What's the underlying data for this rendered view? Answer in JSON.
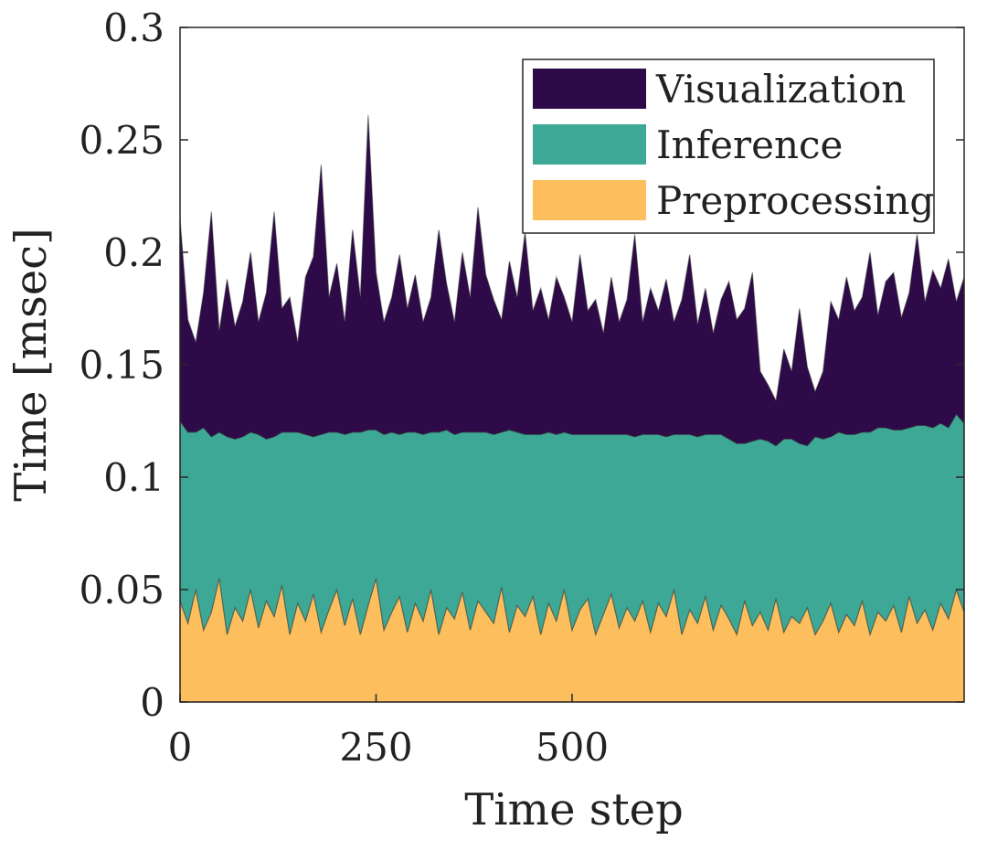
{
  "chart_data": {
    "type": "area",
    "stacked": true,
    "title": "",
    "xlabel": "Time step",
    "ylabel": "Time [msec]",
    "xlim": [
      0,
      1000
    ],
    "ylim": [
      0,
      0.3
    ],
    "xticks": [
      0,
      250,
      500
    ],
    "xtick_labels": [
      "0",
      "250",
      "500"
    ],
    "yticks": [
      0,
      0.05,
      0.1,
      0.15,
      0.2,
      0.25,
      0.3
    ],
    "ytick_labels": [
      "0",
      "0.05",
      "0.1",
      "0.15",
      "0.2",
      "0.25",
      "0.3"
    ],
    "grid": false,
    "legend_position": "top-right",
    "x_step": 10,
    "series": [
      {
        "name": "Preprocessing",
        "color": "#fdbf5e",
        "values": [
          0.045,
          0.035,
          0.05,
          0.032,
          0.04,
          0.055,
          0.03,
          0.042,
          0.036,
          0.05,
          0.033,
          0.045,
          0.038,
          0.052,
          0.03,
          0.044,
          0.036,
          0.048,
          0.031,
          0.041,
          0.05,
          0.034,
          0.046,
          0.03,
          0.043,
          0.055,
          0.032,
          0.04,
          0.047,
          0.031,
          0.044,
          0.036,
          0.05,
          0.03,
          0.042,
          0.037,
          0.049,
          0.032,
          0.045,
          0.04,
          0.035,
          0.051,
          0.031,
          0.043,
          0.038,
          0.047,
          0.03,
          0.044,
          0.036,
          0.05,
          0.032,
          0.041,
          0.046,
          0.03,
          0.039,
          0.048,
          0.033,
          0.042,
          0.036,
          0.045,
          0.031,
          0.044,
          0.038,
          0.05,
          0.03,
          0.041,
          0.035,
          0.047,
          0.032,
          0.043,
          0.037,
          0.03,
          0.045,
          0.034,
          0.04,
          0.032,
          0.046,
          0.031,
          0.038,
          0.035,
          0.042,
          0.03,
          0.036,
          0.044,
          0.031,
          0.039,
          0.034,
          0.045,
          0.03,
          0.04,
          0.036,
          0.043,
          0.031,
          0.047,
          0.035,
          0.041,
          0.032,
          0.044,
          0.037,
          0.05,
          0.04
        ]
      },
      {
        "name": "Inference",
        "color": "#3ea897",
        "values": [
          0.08,
          0.085,
          0.07,
          0.09,
          0.078,
          0.065,
          0.088,
          0.075,
          0.082,
          0.07,
          0.086,
          0.072,
          0.08,
          0.068,
          0.09,
          0.076,
          0.083,
          0.07,
          0.088,
          0.079,
          0.07,
          0.085,
          0.074,
          0.09,
          0.078,
          0.066,
          0.087,
          0.08,
          0.072,
          0.089,
          0.076,
          0.083,
          0.07,
          0.09,
          0.079,
          0.082,
          0.071,
          0.088,
          0.075,
          0.08,
          0.084,
          0.069,
          0.09,
          0.077,
          0.081,
          0.072,
          0.089,
          0.076,
          0.083,
          0.07,
          0.087,
          0.078,
          0.073,
          0.089,
          0.08,
          0.071,
          0.086,
          0.077,
          0.082,
          0.074,
          0.088,
          0.075,
          0.08,
          0.069,
          0.089,
          0.078,
          0.083,
          0.072,
          0.087,
          0.076,
          0.08,
          0.085,
          0.07,
          0.082,
          0.077,
          0.084,
          0.068,
          0.086,
          0.079,
          0.08,
          0.072,
          0.088,
          0.081,
          0.074,
          0.089,
          0.08,
          0.085,
          0.075,
          0.09,
          0.082,
          0.086,
          0.078,
          0.09,
          0.075,
          0.088,
          0.082,
          0.09,
          0.08,
          0.085,
          0.078,
          0.084
        ]
      },
      {
        "name": "Visualization",
        "color": "#2e0b48",
        "values": [
          0.09,
          0.05,
          0.04,
          0.06,
          0.1,
          0.045,
          0.07,
          0.05,
          0.06,
          0.08,
          0.05,
          0.065,
          0.1,
          0.055,
          0.06,
          0.04,
          0.07,
          0.08,
          0.12,
          0.06,
          0.075,
          0.05,
          0.09,
          0.06,
          0.14,
          0.07,
          0.05,
          0.06,
          0.08,
          0.055,
          0.07,
          0.05,
          0.06,
          0.09,
          0.065,
          0.05,
          0.08,
          0.06,
          0.1,
          0.07,
          0.06,
          0.05,
          0.075,
          0.06,
          0.09,
          0.055,
          0.065,
          0.05,
          0.07,
          0.06,
          0.05,
          0.08,
          0.055,
          0.06,
          0.045,
          0.07,
          0.05,
          0.06,
          0.09,
          0.05,
          0.065,
          0.055,
          0.07,
          0.05,
          0.06,
          0.08,
          0.05,
          0.065,
          0.045,
          0.06,
          0.07,
          0.055,
          0.06,
          0.075,
          0.03,
          0.025,
          0.02,
          0.04,
          0.03,
          0.06,
          0.035,
          0.02,
          0.03,
          0.06,
          0.05,
          0.07,
          0.055,
          0.06,
          0.08,
          0.05,
          0.065,
          0.07,
          0.05,
          0.06,
          0.085,
          0.055,
          0.07,
          0.06,
          0.075,
          0.05,
          0.065
        ]
      }
    ],
    "legend_order": [
      "Visualization",
      "Inference",
      "Preprocessing"
    ]
  }
}
